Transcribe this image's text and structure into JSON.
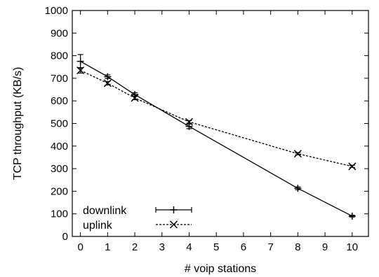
{
  "chart_data": {
    "type": "line",
    "xlabel": "# voip stations",
    "ylabel": "TCP throughput (KB/s)",
    "xlim": [
      -0.3,
      10.6
    ],
    "ylim": [
      0,
      1000
    ],
    "x_ticks": [
      0,
      1,
      2,
      3,
      4,
      5,
      6,
      7,
      8,
      9,
      10
    ],
    "y_ticks": [
      0,
      100,
      200,
      300,
      400,
      500,
      600,
      700,
      800,
      900,
      1000
    ],
    "grid": false,
    "legend_position": "bottom-left",
    "series": [
      {
        "name": "downlink",
        "line_style": "solid",
        "marker": "plus",
        "x": [
          0,
          1,
          2,
          4,
          8,
          10
        ],
        "values": [
          775,
          707,
          628,
          487,
          213,
          90
        ],
        "error": [
          30,
          8,
          8,
          10,
          6,
          4
        ]
      },
      {
        "name": "uplink",
        "line_style": "dashed",
        "marker": "cross",
        "x": [
          0,
          1,
          2,
          4,
          8,
          10
        ],
        "values": [
          735,
          678,
          613,
          507,
          366,
          310
        ],
        "error": [
          12,
          8,
          8,
          6,
          5,
          5
        ]
      }
    ]
  }
}
